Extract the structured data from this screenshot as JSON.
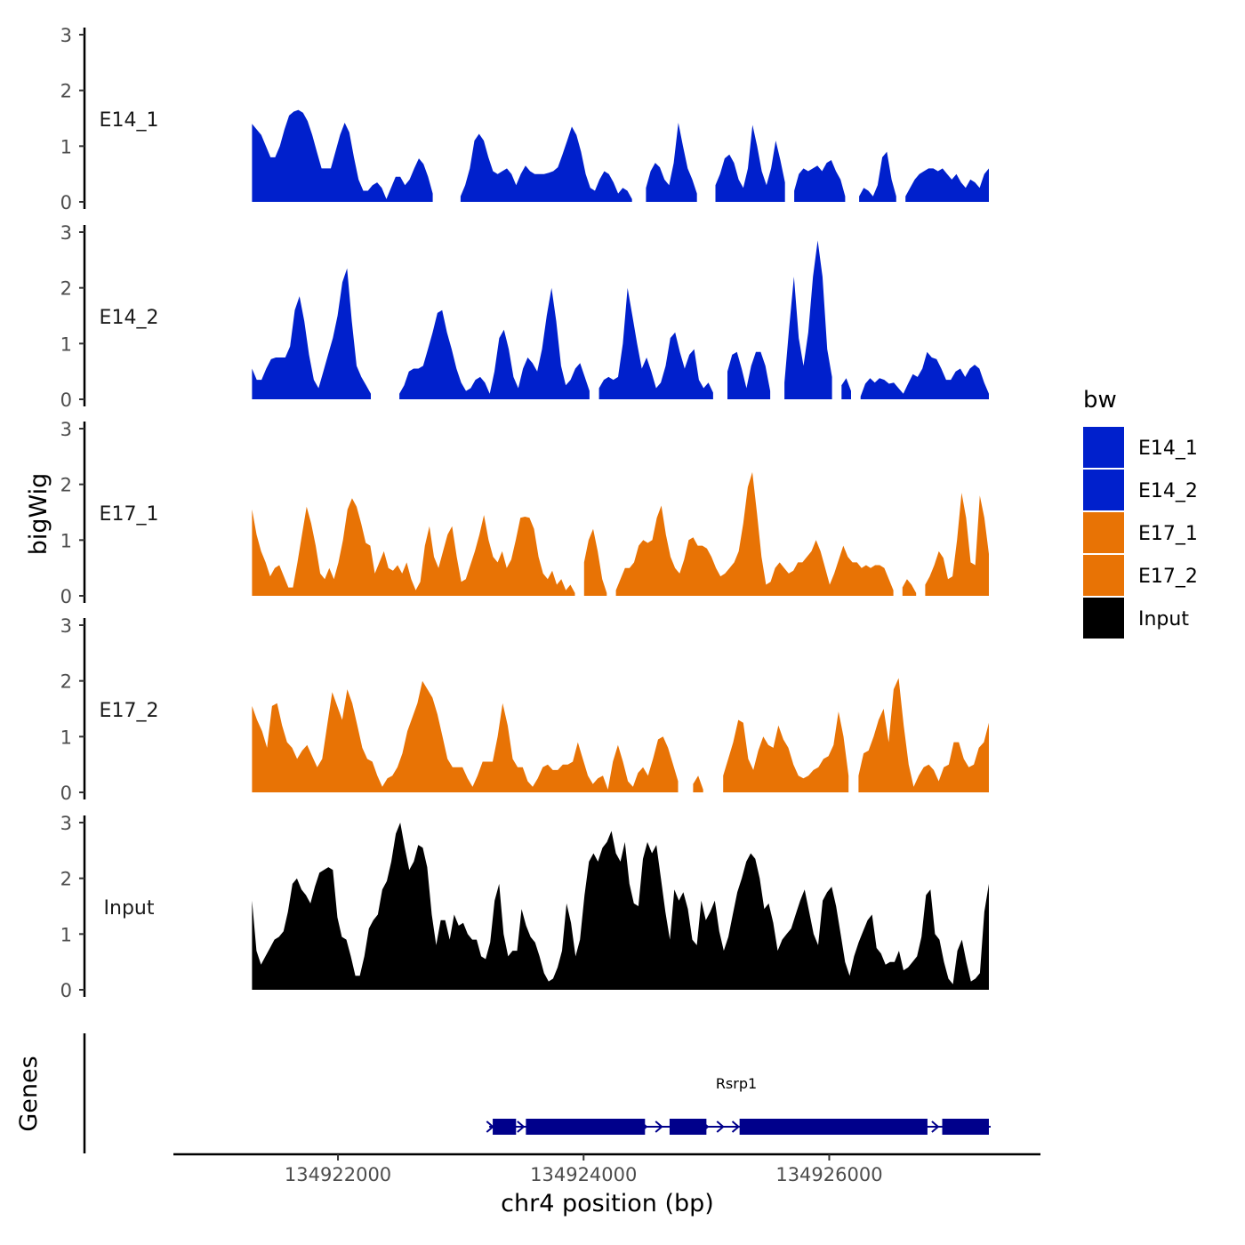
{
  "chart_data": {
    "type": "area",
    "title": "",
    "ylabel": "bigWig",
    "xlabel": "chr4 position (bp)",
    "xlim": [
      134920660,
      134927720
    ],
    "ylim": [
      0,
      3
    ],
    "y_ticks": [
      "0",
      "1",
      "2",
      "3"
    ],
    "x_ticks": [
      {
        "value": 134922000,
        "label": "134922000"
      },
      {
        "value": 134924000,
        "label": "134924000"
      },
      {
        "value": 134926000,
        "label": "134926000"
      }
    ],
    "data_range": [
      134921300,
      134927300
    ],
    "legend": {
      "title": "bw",
      "position": "right",
      "entries": [
        {
          "label": "E14_1",
          "color": "#0020cc"
        },
        {
          "label": "E14_2",
          "color": "#0020cc"
        },
        {
          "label": "E17_1",
          "color": "#e87305"
        },
        {
          "label": "E17_2",
          "color": "#e87305"
        },
        {
          "label": "Input",
          "color": "#000000"
        }
      ]
    },
    "series": [
      {
        "name": "E14_1",
        "color": "#0020cc",
        "values": [
          1.4,
          1.3,
          1.2,
          1.0,
          0.8,
          0.8,
          1.0,
          1.3,
          1.55,
          1.62,
          1.65,
          1.6,
          1.45,
          1.2,
          0.9,
          0.6,
          0.6,
          0.6,
          0.9,
          1.2,
          1.42,
          1.25,
          0.8,
          0.4,
          0.2,
          0.2,
          0.3,
          0.35,
          0.25,
          0.05,
          0.25,
          0.45,
          0.45,
          0.3,
          0.4,
          0.6,
          0.78,
          0.68,
          0.45,
          0.15,
          null,
          null,
          null,
          null,
          null,
          0.1,
          0.3,
          0.6,
          1.1,
          1.22,
          1.1,
          0.8,
          0.55,
          0.5,
          0.55,
          0.6,
          0.5,
          0.3,
          0.5,
          0.65,
          0.55,
          0.5,
          0.5,
          0.5,
          0.52,
          0.55,
          0.62,
          0.85,
          1.1,
          1.35,
          1.2,
          0.9,
          0.5,
          0.25,
          0.2,
          0.4,
          0.55,
          0.5,
          0.35,
          0.15,
          0.25,
          0.2,
          0.05,
          null,
          null,
          0.25,
          0.55,
          0.7,
          0.62,
          0.4,
          0.3,
          0.7,
          1.42,
          1.0,
          0.6,
          0.4,
          0.15,
          null,
          null,
          null,
          0.3,
          0.5,
          0.78,
          0.85,
          0.7,
          0.4,
          0.25,
          0.6,
          1.38,
          1.0,
          0.55,
          0.3,
          0.6,
          1.1,
          0.75,
          0.35,
          null,
          0.2,
          0.5,
          0.6,
          0.55,
          0.6,
          0.65,
          0.55,
          0.7,
          0.75,
          0.55,
          0.4,
          0.1,
          null,
          null,
          0.1,
          0.25,
          0.2,
          0.1,
          0.3,
          0.8,
          0.9,
          0.4,
          0.1,
          null,
          0.1,
          0.25,
          0.4,
          0.5,
          0.55,
          0.6,
          0.6,
          0.55,
          0.6,
          0.5,
          0.4,
          0.5,
          0.35,
          0.25,
          0.4,
          0.35,
          0.25,
          0.5,
          0.6
        ]
      },
      {
        "name": "E14_2",
        "color": "#0020cc",
        "values": [
          0.55,
          0.35,
          0.35,
          0.55,
          0.72,
          0.75,
          0.75,
          0.75,
          0.95,
          1.6,
          1.85,
          1.4,
          0.8,
          0.35,
          0.2,
          0.5,
          0.8,
          1.1,
          1.5,
          2.1,
          2.35,
          1.4,
          0.6,
          0.4,
          0.25,
          0.1,
          null,
          null,
          null,
          null,
          null,
          0.1,
          0.25,
          0.5,
          0.55,
          0.55,
          0.6,
          0.9,
          1.2,
          1.55,
          1.6,
          1.2,
          0.9,
          0.55,
          0.3,
          0.15,
          0.2,
          0.35,
          0.4,
          0.3,
          0.1,
          0.5,
          1.1,
          1.25,
          0.9,
          0.4,
          0.2,
          0.55,
          0.75,
          0.65,
          0.5,
          0.9,
          1.5,
          2.0,
          1.4,
          0.6,
          0.25,
          0.35,
          0.55,
          0.65,
          0.4,
          0.15,
          null,
          0.2,
          0.35,
          0.4,
          0.35,
          0.4,
          1.0,
          2.0,
          1.5,
          1.0,
          0.55,
          0.75,
          0.5,
          0.2,
          0.3,
          0.6,
          1.1,
          1.2,
          0.85,
          0.55,
          0.8,
          0.9,
          0.35,
          0.2,
          0.3,
          0.12,
          null,
          null,
          0.5,
          0.8,
          0.85,
          0.55,
          0.2,
          0.6,
          0.85,
          0.85,
          0.6,
          0.15,
          null,
          null,
          0.3,
          1.3,
          2.2,
          1.1,
          0.6,
          1.2,
          2.2,
          2.85,
          2.2,
          0.9,
          0.4,
          null,
          0.25,
          0.38,
          0.15,
          null,
          0.05,
          0.28,
          0.38,
          0.3,
          0.38,
          0.35,
          0.28,
          0.3,
          0.2,
          0.1,
          0.28,
          0.45,
          0.4,
          0.55,
          0.85,
          0.75,
          0.72,
          0.55,
          0.35,
          0.35,
          0.5,
          0.55,
          0.4,
          0.55,
          0.62,
          0.55,
          0.3,
          0.1
        ]
      },
      {
        "name": "E17_1",
        "color": "#e87305",
        "values": [
          1.55,
          1.1,
          0.8,
          0.6,
          0.35,
          0.5,
          0.55,
          0.35,
          0.15,
          0.15,
          0.6,
          1.1,
          1.6,
          1.3,
          0.9,
          0.4,
          0.3,
          0.5,
          0.3,
          0.6,
          1.0,
          1.55,
          1.75,
          1.6,
          1.3,
          0.95,
          0.9,
          0.4,
          0.6,
          0.8,
          0.5,
          0.45,
          0.55,
          0.4,
          0.6,
          0.3,
          0.1,
          0.25,
          0.9,
          1.25,
          0.7,
          0.5,
          0.8,
          1.1,
          1.25,
          0.7,
          0.25,
          0.3,
          0.55,
          0.8,
          1.1,
          1.45,
          1.0,
          0.7,
          0.6,
          0.8,
          0.5,
          0.65,
          1.0,
          1.4,
          1.42,
          1.4,
          1.2,
          0.7,
          0.4,
          0.3,
          0.45,
          0.2,
          0.3,
          0.1,
          0.2,
          0.05,
          null,
          0.6,
          1.0,
          1.2,
          0.8,
          0.3,
          0.05,
          null,
          0.1,
          0.3,
          0.5,
          0.5,
          0.6,
          0.9,
          1.0,
          0.95,
          1.0,
          1.4,
          1.62,
          1.1,
          0.7,
          0.5,
          0.4,
          0.65,
          1.0,
          1.05,
          0.9,
          0.9,
          0.85,
          0.7,
          0.5,
          0.35,
          0.4,
          0.5,
          0.6,
          0.8,
          1.3,
          1.95,
          2.22,
          1.5,
          0.7,
          0.2,
          0.25,
          0.5,
          0.6,
          0.5,
          0.4,
          0.45,
          0.6,
          0.6,
          0.7,
          0.8,
          1.0,
          0.8,
          0.5,
          0.2,
          0.4,
          0.65,
          0.9,
          0.7,
          0.6,
          0.6,
          0.5,
          0.55,
          0.5,
          0.55,
          0.55,
          0.5,
          0.3,
          0.1,
          null,
          0.15,
          0.3,
          0.2,
          0.05,
          null,
          0.2,
          0.35,
          0.55,
          0.8,
          0.68,
          0.3,
          0.35,
          1.0,
          1.85,
          1.4,
          0.6,
          0.55,
          1.8,
          1.4,
          0.75
        ]
      },
      {
        "name": "E17_2",
        "color": "#e87305",
        "values": [
          1.55,
          1.3,
          1.1,
          0.8,
          1.55,
          1.6,
          1.2,
          0.9,
          0.8,
          0.6,
          0.75,
          0.85,
          0.65,
          0.45,
          0.6,
          1.2,
          1.8,
          1.55,
          1.3,
          1.85,
          1.6,
          1.2,
          0.8,
          0.6,
          0.55,
          0.3,
          0.1,
          0.25,
          0.3,
          0.45,
          0.7,
          1.1,
          1.35,
          1.6,
          2.0,
          1.85,
          1.7,
          1.4,
          1.0,
          0.6,
          0.45,
          0.45,
          0.45,
          0.25,
          0.1,
          0.3,
          0.55,
          0.55,
          0.55,
          1.0,
          1.6,
          1.2,
          0.6,
          0.45,
          0.45,
          0.2,
          0.1,
          0.25,
          0.45,
          0.5,
          0.4,
          0.4,
          0.5,
          0.5,
          0.55,
          0.9,
          0.6,
          0.3,
          0.15,
          0.25,
          0.3,
          0.05,
          0.55,
          0.85,
          0.55,
          0.2,
          0.1,
          0.35,
          0.45,
          0.3,
          0.6,
          0.95,
          1.0,
          0.8,
          0.5,
          0.2,
          null,
          null,
          0.15,
          0.3,
          0.05,
          null,
          null,
          null,
          0.3,
          0.6,
          0.9,
          1.3,
          1.25,
          0.6,
          0.4,
          0.75,
          1.0,
          0.85,
          0.8,
          1.2,
          0.95,
          0.8,
          0.5,
          0.3,
          0.25,
          0.3,
          0.4,
          0.45,
          0.6,
          0.65,
          0.85,
          1.45,
          1.0,
          0.3,
          null,
          0.3,
          0.7,
          0.75,
          1.0,
          1.3,
          1.5,
          0.9,
          1.85,
          2.05,
          1.2,
          0.5,
          0.1,
          0.3,
          0.45,
          0.5,
          0.4,
          0.2,
          0.45,
          0.5,
          0.9,
          0.9,
          0.6,
          0.45,
          0.5,
          0.8,
          0.9,
          1.25
        ]
      },
      {
        "name": "Input",
        "color": "#000000",
        "values": [
          1.6,
          0.7,
          0.45,
          0.6,
          0.75,
          0.9,
          0.95,
          1.05,
          1.4,
          1.9,
          2.0,
          1.8,
          1.7,
          1.55,
          1.85,
          2.1,
          2.15,
          2.2,
          2.15,
          1.3,
          0.95,
          0.9,
          0.6,
          0.25,
          0.25,
          0.6,
          1.1,
          1.25,
          1.35,
          1.8,
          1.95,
          2.3,
          2.8,
          3.0,
          2.55,
          2.15,
          2.3,
          2.6,
          2.55,
          2.2,
          1.35,
          0.8,
          1.25,
          1.25,
          0.9,
          1.35,
          1.15,
          1.2,
          1.0,
          0.9,
          0.9,
          0.6,
          0.55,
          0.85,
          1.6,
          1.9,
          1.0,
          0.6,
          0.7,
          0.7,
          1.45,
          1.15,
          0.95,
          0.85,
          0.6,
          0.3,
          0.15,
          0.2,
          0.4,
          0.7,
          1.55,
          1.2,
          0.6,
          0.9,
          1.7,
          2.3,
          2.45,
          2.3,
          2.55,
          2.65,
          2.85,
          2.45,
          2.3,
          2.65,
          1.9,
          1.55,
          1.5,
          2.35,
          2.65,
          2.45,
          2.6,
          2.0,
          1.4,
          0.9,
          1.8,
          1.6,
          1.75,
          1.45,
          0.9,
          0.8,
          1.6,
          1.25,
          1.4,
          1.6,
          1.05,
          0.7,
          0.95,
          1.35,
          1.75,
          2.0,
          2.3,
          2.45,
          2.35,
          2.0,
          1.45,
          1.55,
          1.2,
          0.7,
          0.9,
          1.0,
          1.1,
          1.35,
          1.6,
          1.8,
          1.4,
          1.0,
          0.8,
          1.6,
          1.75,
          1.85,
          1.5,
          1.0,
          0.5,
          0.25,
          0.6,
          0.85,
          1.05,
          1.25,
          1.35,
          0.75,
          0.65,
          0.45,
          0.5,
          0.5,
          0.7,
          0.35,
          0.4,
          0.5,
          0.6,
          0.95,
          1.7,
          1.8,
          1.0,
          0.9,
          0.5,
          0.2,
          0.1,
          0.7,
          0.9,
          0.5,
          0.15,
          0.2,
          0.3,
          1.4,
          1.9
        ]
      }
    ],
    "genes": {
      "label": "Genes",
      "name": "Rsrp1",
      "strand": "+",
      "start": 134923260,
      "end": 134927300,
      "exons": [
        [
          134923260,
          134923450
        ],
        [
          134923530,
          134924500
        ],
        [
          134924700,
          134925000
        ],
        [
          134925270,
          134926800
        ],
        [
          134926920,
          134927300
        ]
      ]
    }
  }
}
